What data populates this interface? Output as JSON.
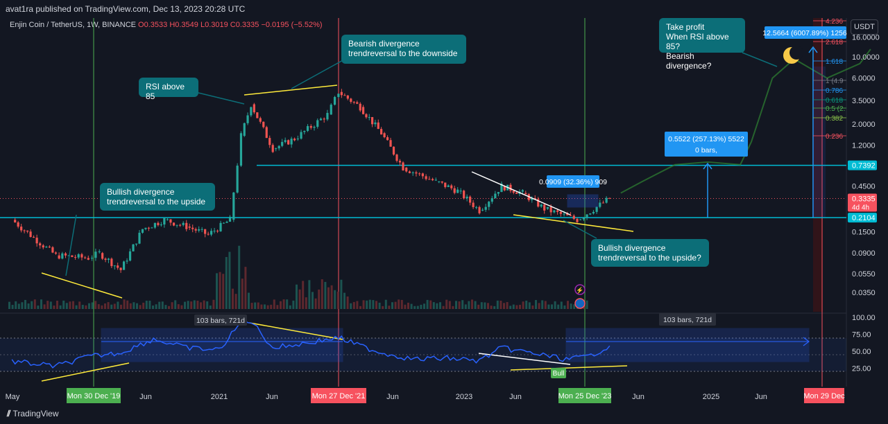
{
  "header": {
    "published": "avat1ra published on TradingView.com, Dec 13, 2023 20:28 UTC",
    "symbol": "Enjin Coin / TetherUS, 1W, BINANCE",
    "ohlc": {
      "o": "O0.3533",
      "h": "H0.3549",
      "l": "L0.3019",
      "c": "C0.3335",
      "chg": "−0.0195 (−5.52%)"
    }
  },
  "currency_button": "USDT",
  "footer": {
    "brand": "TradingView"
  },
  "callouts": {
    "rsi85": "RSI above 85",
    "bearish": "Bearish divergence\ntrendreversal to the downside",
    "bullish1": "Bullish divergence\ntrendreversal to the upside",
    "bullish2": "Bullish divergence\ntrendreversal to the upside?",
    "takeprofit": "Take profit\nWhen RSI above 85?\nBearish divergence?"
  },
  "measures": {
    "m1": "0.0909 (32.36%) 909",
    "m2a": "0.5522 (257.13%) 5522",
    "m2b": "0 bars,",
    "m3": "12.5664 (6007.89%) 1256",
    "rsi_range1": "103 bars, 721d",
    "rsi_range2": "103 bars, 721d",
    "bull_tag": "Bull"
  },
  "fib": {
    "levels": [
      "4.236",
      "2.618",
      "1.618",
      "1 (4.9",
      "0.786",
      "0.618",
      "0.5 (2.",
      "0.382",
      "0.236"
    ],
    "colors": [
      "#f7525f",
      "#f7525f",
      "#2196f3",
      "#787b86",
      "#2196f3",
      "#089981",
      "#4caf50",
      "#8bc34a",
      "#f7525f"
    ]
  },
  "chart_data": {
    "type": "candlestick",
    "title": "Enjin Coin / TetherUS, 1W, BINANCE",
    "y_scale": "log",
    "price_axis_ticks": [
      "16.0000",
      "10.0000",
      "6.0000",
      "3.5000",
      "2.0000",
      "1.2000",
      "0.4500",
      "0.1500",
      "0.0900",
      "0.0550",
      "0.0350"
    ],
    "price_tick_values": [
      16,
      10,
      6,
      3.5,
      2,
      1.2,
      0.45,
      0.15,
      0.09,
      0.055,
      0.035
    ],
    "price_labels": [
      {
        "text": "0.7392",
        "value": 0.7392,
        "color": "#00bcd4"
      },
      {
        "text": "0.3335",
        "sub": "4d 4h",
        "value": 0.3335,
        "color": "#f7525f"
      },
      {
        "text": "0.2104",
        "value": 0.2104,
        "color": "#00bcd4"
      }
    ],
    "horizontal_levels": [
      0.7392,
      0.2104
    ],
    "time_axis_ticks": [
      "May",
      "Jun",
      "2021",
      "Jun",
      "Jun",
      "2023",
      "Jun",
      "Jun",
      "2025",
      "Jun"
    ],
    "time_axis_highlights": [
      {
        "text": "Mon 30 Dec '19",
        "color": "#4caf50"
      },
      {
        "text": "Mon 27 Dec '21",
        "color": "#f7525f"
      },
      {
        "text": "Mon 25 Dec '23",
        "color": "#4caf50"
      },
      {
        "text": "Mon 29 Dec",
        "color": "#f7525f"
      }
    ],
    "price_path": [
      [
        "2019-05",
        0.2
      ],
      [
        "2019-07",
        0.13
      ],
      [
        "2019-09",
        0.085
      ],
      [
        "2019-12",
        0.08
      ],
      [
        "2020-01",
        0.09
      ],
      [
        "2020-03",
        0.06
      ],
      [
        "2020-05",
        0.16
      ],
      [
        "2020-07",
        0.2
      ],
      [
        "2020-09",
        0.17
      ],
      [
        "2020-11",
        0.14
      ],
      [
        "2021-01",
        0.2
      ],
      [
        "2021-02",
        1.5
      ],
      [
        "2021-03",
        3.2
      ],
      [
        "2021-05",
        1.1
      ],
      [
        "2021-07",
        1.4
      ],
      [
        "2021-10",
        2.5
      ],
      [
        "2021-11",
        4.3
      ],
      [
        "2022-01",
        3.0
      ],
      [
        "2022-03",
        1.6
      ],
      [
        "2022-05",
        0.7
      ],
      [
        "2022-08",
        0.5
      ],
      [
        "2022-10",
        0.4
      ],
      [
        "2022-12",
        0.25
      ],
      [
        "2023-02",
        0.45
      ],
      [
        "2023-04",
        0.38
      ],
      [
        "2023-06",
        0.26
      ],
      [
        "2023-09",
        0.2
      ],
      [
        "2023-12",
        0.3335
      ]
    ],
    "projection_path": [
      [
        "2024-01",
        0.38
      ],
      [
        "2024-03",
        0.5
      ],
      [
        "2024-06",
        0.75
      ],
      [
        "2024-09",
        0.8
      ],
      [
        "2024-12",
        0.75
      ],
      [
        "2025-01",
        1.3
      ],
      [
        "2025-03",
        6
      ],
      [
        "2025-05",
        9.5
      ],
      [
        "2025-08",
        6
      ],
      [
        "2025-11",
        8.5
      ],
      [
        "2025-12",
        12
      ]
    ],
    "rsi_axis_ticks": [
      "100.00",
      "75.00",
      "50.00",
      "25.00"
    ],
    "rsi_tick_values": [
      100,
      75,
      50,
      25
    ],
    "rsi_path": [
      [
        "2019-05",
        35
      ],
      [
        "2019-09",
        28
      ],
      [
        "2019-12",
        42
      ],
      [
        "2020-03",
        48
      ],
      [
        "2020-06",
        68
      ],
      [
        "2020-09",
        55
      ],
      [
        "2020-12",
        52
      ],
      [
        "2021-02",
        92
      ],
      [
        "2021-03",
        95
      ],
      [
        "2021-05",
        55
      ],
      [
        "2021-08",
        62
      ],
      [
        "2021-11",
        70
      ],
      [
        "2022-01",
        58
      ],
      [
        "2022-03",
        48
      ],
      [
        "2022-06",
        38
      ],
      [
        "2022-09",
        40
      ],
      [
        "2022-12",
        36
      ],
      [
        "2023-02",
        55
      ],
      [
        "2023-05",
        47
      ],
      [
        "2023-08",
        38
      ],
      [
        "2023-10",
        42
      ],
      [
        "2023-12",
        58
      ]
    ]
  }
}
